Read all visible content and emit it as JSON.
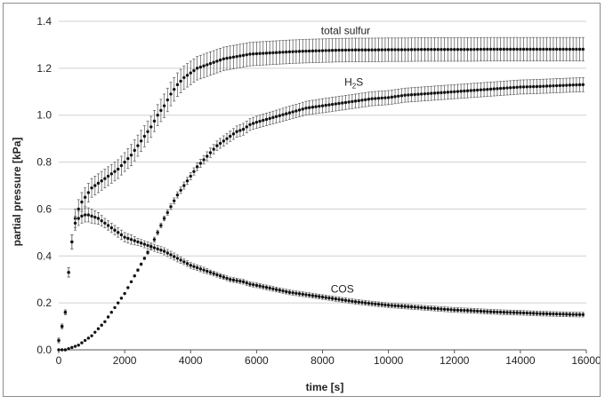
{
  "chart_data": {
    "type": "scatter",
    "xlabel": "time [s]",
    "ylabel": "partial pressure [kPa]",
    "xlim": [
      0,
      16000
    ],
    "ylim": [
      0,
      1.4
    ],
    "x_ticks": [
      "0",
      "2000",
      "4000",
      "6000",
      "8000",
      "10000",
      "12000",
      "14000",
      "16000"
    ],
    "y_ticks": [
      "0.0",
      "0.2",
      "0.4",
      "0.6",
      "0.8",
      "1.0",
      "1.2",
      "1.4"
    ],
    "grid": "horizontal",
    "series": [
      {
        "key": "total",
        "label_text": "total sulfur",
        "label_at": {
          "x": 8700,
          "y": 1.345
        },
        "x": [
          0,
          200,
          300,
          400,
          500,
          600,
          700,
          800,
          900,
          1000,
          1200,
          1400,
          1600,
          1800,
          2000,
          2200,
          2400,
          2600,
          2800,
          3000,
          3200,
          3400,
          3600,
          3800,
          4000,
          4200,
          4400,
          4600,
          4800,
          5000,
          5200,
          5400,
          5600,
          5800,
          6000,
          6500,
          7000,
          7500,
          8000,
          8500,
          9000,
          9500,
          10000,
          10500,
          11000,
          11500,
          12000,
          12500,
          13000,
          13500,
          14000,
          14500,
          15000,
          15500,
          15900
        ],
        "y": [
          0.04,
          0.16,
          0.33,
          0.46,
          0.56,
          0.6,
          0.63,
          0.65,
          0.67,
          0.69,
          0.71,
          0.73,
          0.75,
          0.77,
          0.8,
          0.83,
          0.87,
          0.91,
          0.95,
          1.0,
          1.04,
          1.09,
          1.13,
          1.16,
          1.18,
          1.2,
          1.21,
          1.22,
          1.23,
          1.24,
          1.245,
          1.25,
          1.255,
          1.26,
          1.262,
          1.266,
          1.27,
          1.273,
          1.275,
          1.277,
          1.278,
          1.278,
          1.279,
          1.279,
          1.28,
          1.28,
          1.28,
          1.28,
          1.281,
          1.281,
          1.281,
          1.281,
          1.281,
          1.281,
          1.281
        ],
        "err": [
          0.01,
          0.01,
          0.02,
          0.03,
          0.04,
          0.04,
          0.04,
          0.04,
          0.04,
          0.04,
          0.04,
          0.04,
          0.04,
          0.04,
          0.04,
          0.045,
          0.045,
          0.045,
          0.045,
          0.045,
          0.05,
          0.05,
          0.05,
          0.05,
          0.05,
          0.05,
          0.05,
          0.05,
          0.05,
          0.05,
          0.05,
          0.05,
          0.05,
          0.05,
          0.05,
          0.05,
          0.05,
          0.05,
          0.05,
          0.05,
          0.05,
          0.05,
          0.05,
          0.05,
          0.05,
          0.05,
          0.05,
          0.05,
          0.05,
          0.05,
          0.05,
          0.05,
          0.05,
          0.05,
          0.05
        ]
      },
      {
        "key": "h2s",
        "label_text": "H",
        "label_sub": "2",
        "label_tail": "S",
        "label_at": {
          "x": 8950,
          "y": 1.125
        },
        "x": [
          0,
          200,
          400,
          600,
          800,
          1000,
          1200,
          1400,
          1600,
          1800,
          2000,
          2200,
          2400,
          2600,
          2800,
          3000,
          3200,
          3400,
          3600,
          3800,
          4000,
          4200,
          4400,
          4600,
          4800,
          5000,
          5200,
          5400,
          5600,
          5800,
          6000,
          6500,
          7000,
          7500,
          8000,
          8500,
          9000,
          9500,
          10000,
          10500,
          11000,
          11500,
          12000,
          12500,
          13000,
          13500,
          14000,
          14500,
          15000,
          15500,
          15900
        ],
        "y": [
          0,
          0,
          0.01,
          0.02,
          0.04,
          0.06,
          0.09,
          0.12,
          0.16,
          0.2,
          0.24,
          0.29,
          0.34,
          0.39,
          0.44,
          0.5,
          0.56,
          0.61,
          0.66,
          0.7,
          0.74,
          0.78,
          0.81,
          0.84,
          0.87,
          0.89,
          0.91,
          0.93,
          0.94,
          0.96,
          0.97,
          0.99,
          1.01,
          1.03,
          1.04,
          1.05,
          1.06,
          1.07,
          1.075,
          1.085,
          1.09,
          1.095,
          1.1,
          1.105,
          1.11,
          1.115,
          1.12,
          1.122,
          1.125,
          1.128,
          1.13
        ],
        "err": [
          0,
          0,
          0,
          0,
          0,
          0,
          0,
          0,
          0,
          0,
          0,
          0,
          0.005,
          0.005,
          0.01,
          0.01,
          0.01,
          0.012,
          0.013,
          0.015,
          0.015,
          0.016,
          0.018,
          0.02,
          0.02,
          0.022,
          0.022,
          0.024,
          0.025,
          0.025,
          0.026,
          0.027,
          0.028,
          0.029,
          0.03,
          0.03,
          0.03,
          0.03,
          0.03,
          0.03,
          0.03,
          0.03,
          0.03,
          0.03,
          0.03,
          0.03,
          0.03,
          0.03,
          0.03,
          0.03,
          0.03
        ]
      },
      {
        "key": "cos",
        "label_text": "COS",
        "label_at": {
          "x": 8600,
          "y": 0.245
        },
        "x": [
          0,
          200,
          300,
          400,
          500,
          600,
          700,
          800,
          900,
          1000,
          1200,
          1400,
          1600,
          1800,
          2000,
          2200,
          2400,
          2600,
          2800,
          3000,
          3200,
          3400,
          3600,
          3800,
          4000,
          4200,
          4400,
          4600,
          4800,
          5000,
          5200,
          5400,
          5600,
          5800,
          6000,
          6500,
          7000,
          7500,
          8000,
          8500,
          9000,
          9500,
          10000,
          10500,
          11000,
          11500,
          12000,
          12500,
          13000,
          13500,
          14000,
          14500,
          15000,
          15500,
          15900
        ],
        "y": [
          0.04,
          0.16,
          0.33,
          0.46,
          0.54,
          0.56,
          0.57,
          0.575,
          0.575,
          0.57,
          0.56,
          0.54,
          0.52,
          0.5,
          0.48,
          0.47,
          0.46,
          0.45,
          0.44,
          0.43,
          0.42,
          0.405,
          0.39,
          0.375,
          0.36,
          0.35,
          0.34,
          0.33,
          0.32,
          0.31,
          0.3,
          0.295,
          0.29,
          0.28,
          0.275,
          0.26,
          0.245,
          0.235,
          0.225,
          0.215,
          0.205,
          0.197,
          0.19,
          0.185,
          0.18,
          0.175,
          0.17,
          0.167,
          0.163,
          0.16,
          0.158,
          0.155,
          0.153,
          0.151,
          0.15
        ],
        "err": [
          0.01,
          0.01,
          0.02,
          0.03,
          0.03,
          0.03,
          0.03,
          0.03,
          0.03,
          0.03,
          0.025,
          0.02,
          0.02,
          0.02,
          0.02,
          0.02,
          0.015,
          0.015,
          0.015,
          0.015,
          0.015,
          0.015,
          0.015,
          0.012,
          0.012,
          0.012,
          0.012,
          0.01,
          0.01,
          0.01,
          0.01,
          0.01,
          0.01,
          0.01,
          0.01,
          0.01,
          0.01,
          0.01,
          0.01,
          0.01,
          0.01,
          0.01,
          0.01,
          0.01,
          0.01,
          0.01,
          0.01,
          0.01,
          0.01,
          0.01,
          0.01,
          0.01,
          0.01,
          0.01,
          0.01
        ]
      }
    ]
  }
}
